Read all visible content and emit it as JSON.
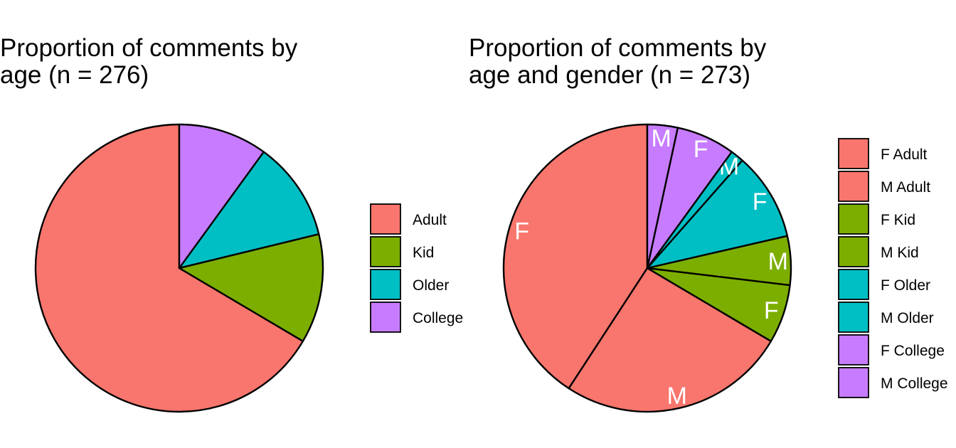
{
  "chart_data": [
    {
      "type": "pie",
      "title_lines": [
        "Proportion of comments by",
        "age (n = 276)"
      ],
      "slices": [
        {
          "label": "Adult",
          "value": 0.665,
          "color": "#F8766D"
        },
        {
          "label": "Kid",
          "value": 0.123,
          "color": "#7CAE00"
        },
        {
          "label": "Older",
          "value": 0.112,
          "color": "#00BFC4"
        },
        {
          "label": "College",
          "value": 0.1,
          "color": "#C77CFF"
        }
      ],
      "legend": [
        {
          "label": "Adult",
          "color": "#F8766D"
        },
        {
          "label": "Kid",
          "color": "#7CAE00"
        },
        {
          "label": "Older",
          "color": "#00BFC4"
        },
        {
          "label": "College",
          "color": "#C77CFF"
        }
      ],
      "legend_position": "right"
    },
    {
      "type": "pie",
      "title_lines": [
        "Proportion of comments by",
        "age and gender (n = 273)"
      ],
      "slices": [
        {
          "label": "F Adult",
          "value": 0.408,
          "color": "#F8766D",
          "slice_label": "F"
        },
        {
          "label": "M Adult",
          "value": 0.257,
          "color": "#F8766D",
          "slice_label": "M"
        },
        {
          "label": "F Kid",
          "value": 0.066,
          "color": "#7CAE00",
          "slice_label": "F"
        },
        {
          "label": "M Kid",
          "value": 0.055,
          "color": "#7CAE00",
          "slice_label": "M"
        },
        {
          "label": "F Older",
          "value": 0.099,
          "color": "#00BFC4",
          "slice_label": "F"
        },
        {
          "label": "M Older",
          "value": 0.015,
          "color": "#00BFC4",
          "slice_label": "M"
        },
        {
          "label": "F College",
          "value": 0.066,
          "color": "#C77CFF",
          "slice_label": "F"
        },
        {
          "label": "M College",
          "value": 0.034,
          "color": "#C77CFF",
          "slice_label": "M"
        }
      ],
      "legend": [
        {
          "label": "F Adult",
          "color": "#F8766D"
        },
        {
          "label": "M Adult",
          "color": "#F8766D"
        },
        {
          "label": "F Kid",
          "color": "#7CAE00"
        },
        {
          "label": "M Kid",
          "color": "#7CAE00"
        },
        {
          "label": "F Older",
          "color": "#00BFC4"
        },
        {
          "label": "M Older",
          "color": "#00BFC4"
        },
        {
          "label": "F College",
          "color": "#C77CFF"
        },
        {
          "label": "M College",
          "color": "#C77CFF"
        }
      ],
      "legend_position": "right"
    }
  ]
}
